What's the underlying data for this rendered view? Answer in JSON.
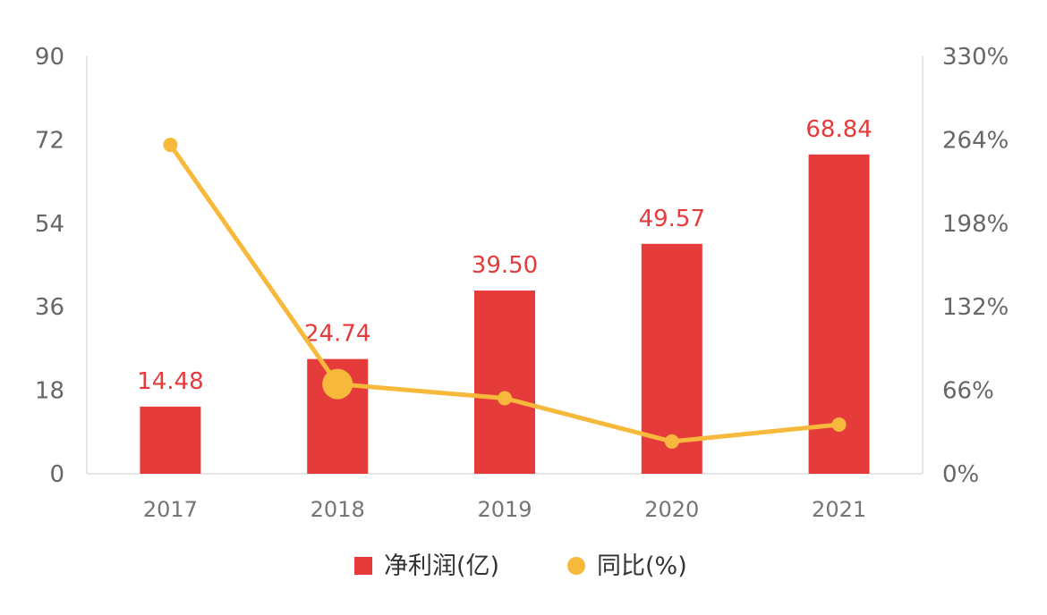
{
  "chart_data": {
    "type": "bar",
    "categories": [
      "2017",
      "2018",
      "2019",
      "2020",
      "2021"
    ],
    "series": [
      {
        "name": "净利润(亿)",
        "type": "bar",
        "axis": "left",
        "values": [
          14.48,
          24.74,
          39.5,
          49.57,
          68.84
        ],
        "labels": [
          "14.48",
          "24.74",
          "39.50",
          "49.57",
          "68.84"
        ]
      },
      {
        "name": "同比(%)",
        "type": "line",
        "axis": "right",
        "values": [
          260,
          70.9,
          59.7,
          25.5,
          38.9
        ]
      }
    ],
    "y_left": {
      "min": 0,
      "max": 90,
      "ticks": [
        "0",
        "18",
        "36",
        "54",
        "72",
        "90"
      ]
    },
    "y_right": {
      "min": 0,
      "max": 330,
      "ticks": [
        "0%",
        "66%",
        "132%",
        "198%",
        "264%",
        "330%"
      ]
    },
    "highlight_index": 1,
    "colors": {
      "bar": "#e53b3b",
      "line": "#f6b93b",
      "axis": "#e6e6e6"
    },
    "grid": false,
    "legend_position": "bottom-center"
  }
}
